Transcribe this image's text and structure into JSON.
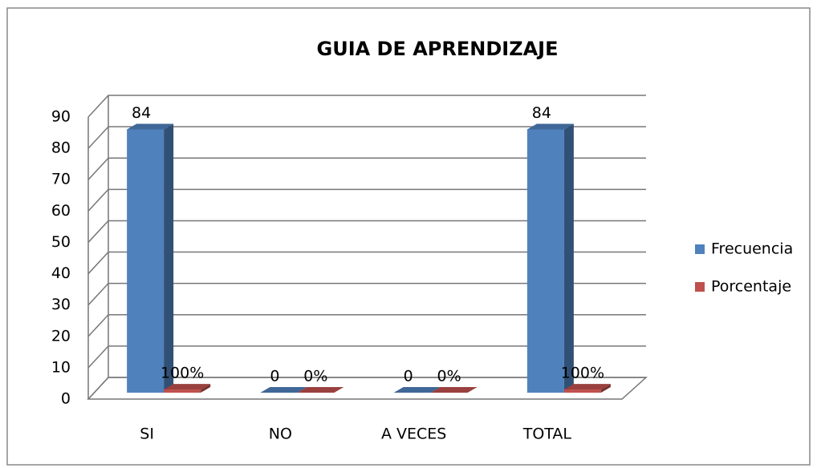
{
  "chart_data": {
    "type": "bar3d",
    "title": "GUIA DE APRENDIZAJE",
    "categories": [
      "SI",
      "NO",
      "A VECES",
      "TOTAL"
    ],
    "series": [
      {
        "name": "Frecuencia",
        "color": "#4f81bd",
        "values": [
          84,
          0,
          0,
          84
        ]
      },
      {
        "name": "Porcentaje",
        "color": "#c0504d",
        "values": [
          1,
          0,
          0,
          1
        ],
        "value_labels": [
          "100%",
          "0%",
          "0%",
          "100%"
        ]
      }
    ],
    "ylim": [
      0,
      90
    ],
    "yticks": [
      0,
      10,
      20,
      30,
      40,
      50,
      60,
      70,
      80,
      90
    ],
    "grid": true,
    "legend": "right"
  }
}
